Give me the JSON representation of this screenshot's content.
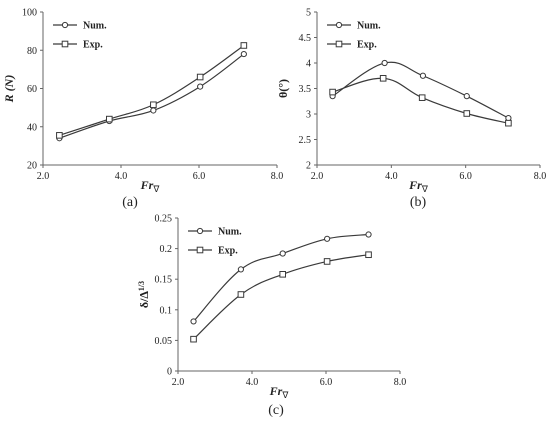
{
  "chart_data": [
    {
      "id": "a",
      "type": "line",
      "caption": "(a)",
      "xlabel": "Fr∇",
      "ylabel": "R (N)",
      "xlim": [
        2.0,
        8.0
      ],
      "ylim": [
        20,
        100
      ],
      "xticks": [
        "2.0",
        "4.0",
        "6.0",
        "8.0"
      ],
      "yticks": [
        "20",
        "40",
        "60",
        "80",
        "100"
      ],
      "legend_position": "top-left",
      "grid": false,
      "series": [
        {
          "name": "Num.",
          "marker": "circle",
          "x": [
            2.42,
            3.7,
            4.83,
            6.03,
            7.15
          ],
          "y": [
            34,
            43,
            48.5,
            61,
            78
          ]
        },
        {
          "name": "Exp.",
          "marker": "square",
          "x": [
            2.42,
            3.7,
            4.83,
            6.03,
            7.15
          ],
          "y": [
            35.5,
            44,
            51.5,
            66,
            82.5
          ]
        }
      ]
    },
    {
      "id": "b",
      "type": "line",
      "caption": "(b)",
      "xlabel": "Fr∇",
      "ylabel": "θ(°)",
      "xlim": [
        2.0,
        8.0
      ],
      "ylim": [
        2,
        5
      ],
      "xticks": [
        "2.0",
        "4.0",
        "6.0",
        "8.0"
      ],
      "yticks": [
        "2",
        "2.5",
        "3",
        "3.5",
        "4",
        "4.5",
        "5"
      ],
      "legend_position": "top-left",
      "grid": false,
      "series": [
        {
          "name": "Num.",
          "marker": "circle",
          "x": [
            2.42,
            3.82,
            4.85,
            6.03,
            7.15
          ],
          "y": [
            3.35,
            4.0,
            3.75,
            3.35,
            2.92
          ]
        },
        {
          "name": "Exp.",
          "marker": "square",
          "x": [
            2.42,
            3.78,
            4.83,
            6.03,
            7.15
          ],
          "y": [
            3.43,
            3.7,
            3.32,
            3.01,
            2.82
          ]
        }
      ]
    },
    {
      "id": "c",
      "type": "line",
      "caption": "(c)",
      "xlabel": "Fr∇",
      "ylabel": "δ/∆1/3",
      "xlim": [
        2.0,
        8.0
      ],
      "ylim": [
        0,
        0.25
      ],
      "xticks": [
        "2.0",
        "4.0",
        "6.0",
        "8.0"
      ],
      "yticks": [
        "0",
        "0.05",
        "0.1",
        "0.15",
        "0.2",
        "0.25"
      ],
      "legend_position": "top-left",
      "grid": false,
      "series": [
        {
          "name": "Num.",
          "marker": "circle",
          "x": [
            2.42,
            3.7,
            4.83,
            6.03,
            7.15
          ],
          "y": [
            0.081,
            0.166,
            0.192,
            0.216,
            0.223
          ]
        },
        {
          "name": "Exp.",
          "marker": "square",
          "x": [
            2.42,
            3.7,
            4.83,
            6.03,
            7.15
          ],
          "y": [
            0.052,
            0.125,
            0.158,
            0.179,
            0.19
          ]
        }
      ]
    }
  ],
  "colors": {
    "line": "#3a3a3a",
    "marker_fill": "#ffffff",
    "axis": "#666666",
    "text": "#222222"
  }
}
